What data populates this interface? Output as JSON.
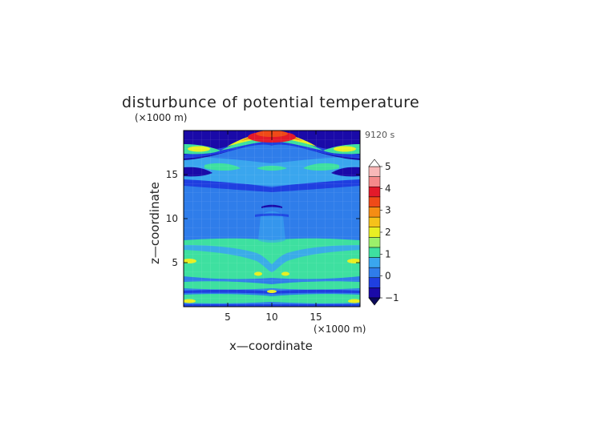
{
  "chart_data": {
    "type": "heatmap",
    "title": "disturbunce of potential temperature",
    "time_label": "9120 s",
    "xlabel": "x—coordinate",
    "ylabel": "z—coordinate",
    "x_unit": "(×1000 m)",
    "y_unit": "(×1000 m)",
    "xlim": [
      0,
      20
    ],
    "ylim": [
      0,
      20
    ],
    "x_ticks": [
      "5",
      "10",
      "15"
    ],
    "y_ticks": [
      "5",
      "10",
      "15"
    ],
    "colorbar": {
      "levels": [
        -1,
        -0.5,
        0,
        0.5,
        1,
        1.5,
        2,
        2.5,
        3,
        3.5,
        4,
        4.5,
        5
      ],
      "tick_labels": [
        "−1",
        "0",
        "1",
        "2",
        "3",
        "4",
        "5"
      ],
      "colors": [
        "#1a0aa8",
        "#1f3fe0",
        "#2f7dea",
        "#3aa6ee",
        "#3ee0a0",
        "#9cf06a",
        "#e8ef23",
        "#f6c21a",
        "#f58d14",
        "#ef4a18",
        "#e31a2a",
        "#f58a8a",
        "#f8b8b8"
      ]
    },
    "x": [
      0,
      20
    ],
    "z": [
      0,
      20
    ]
  }
}
